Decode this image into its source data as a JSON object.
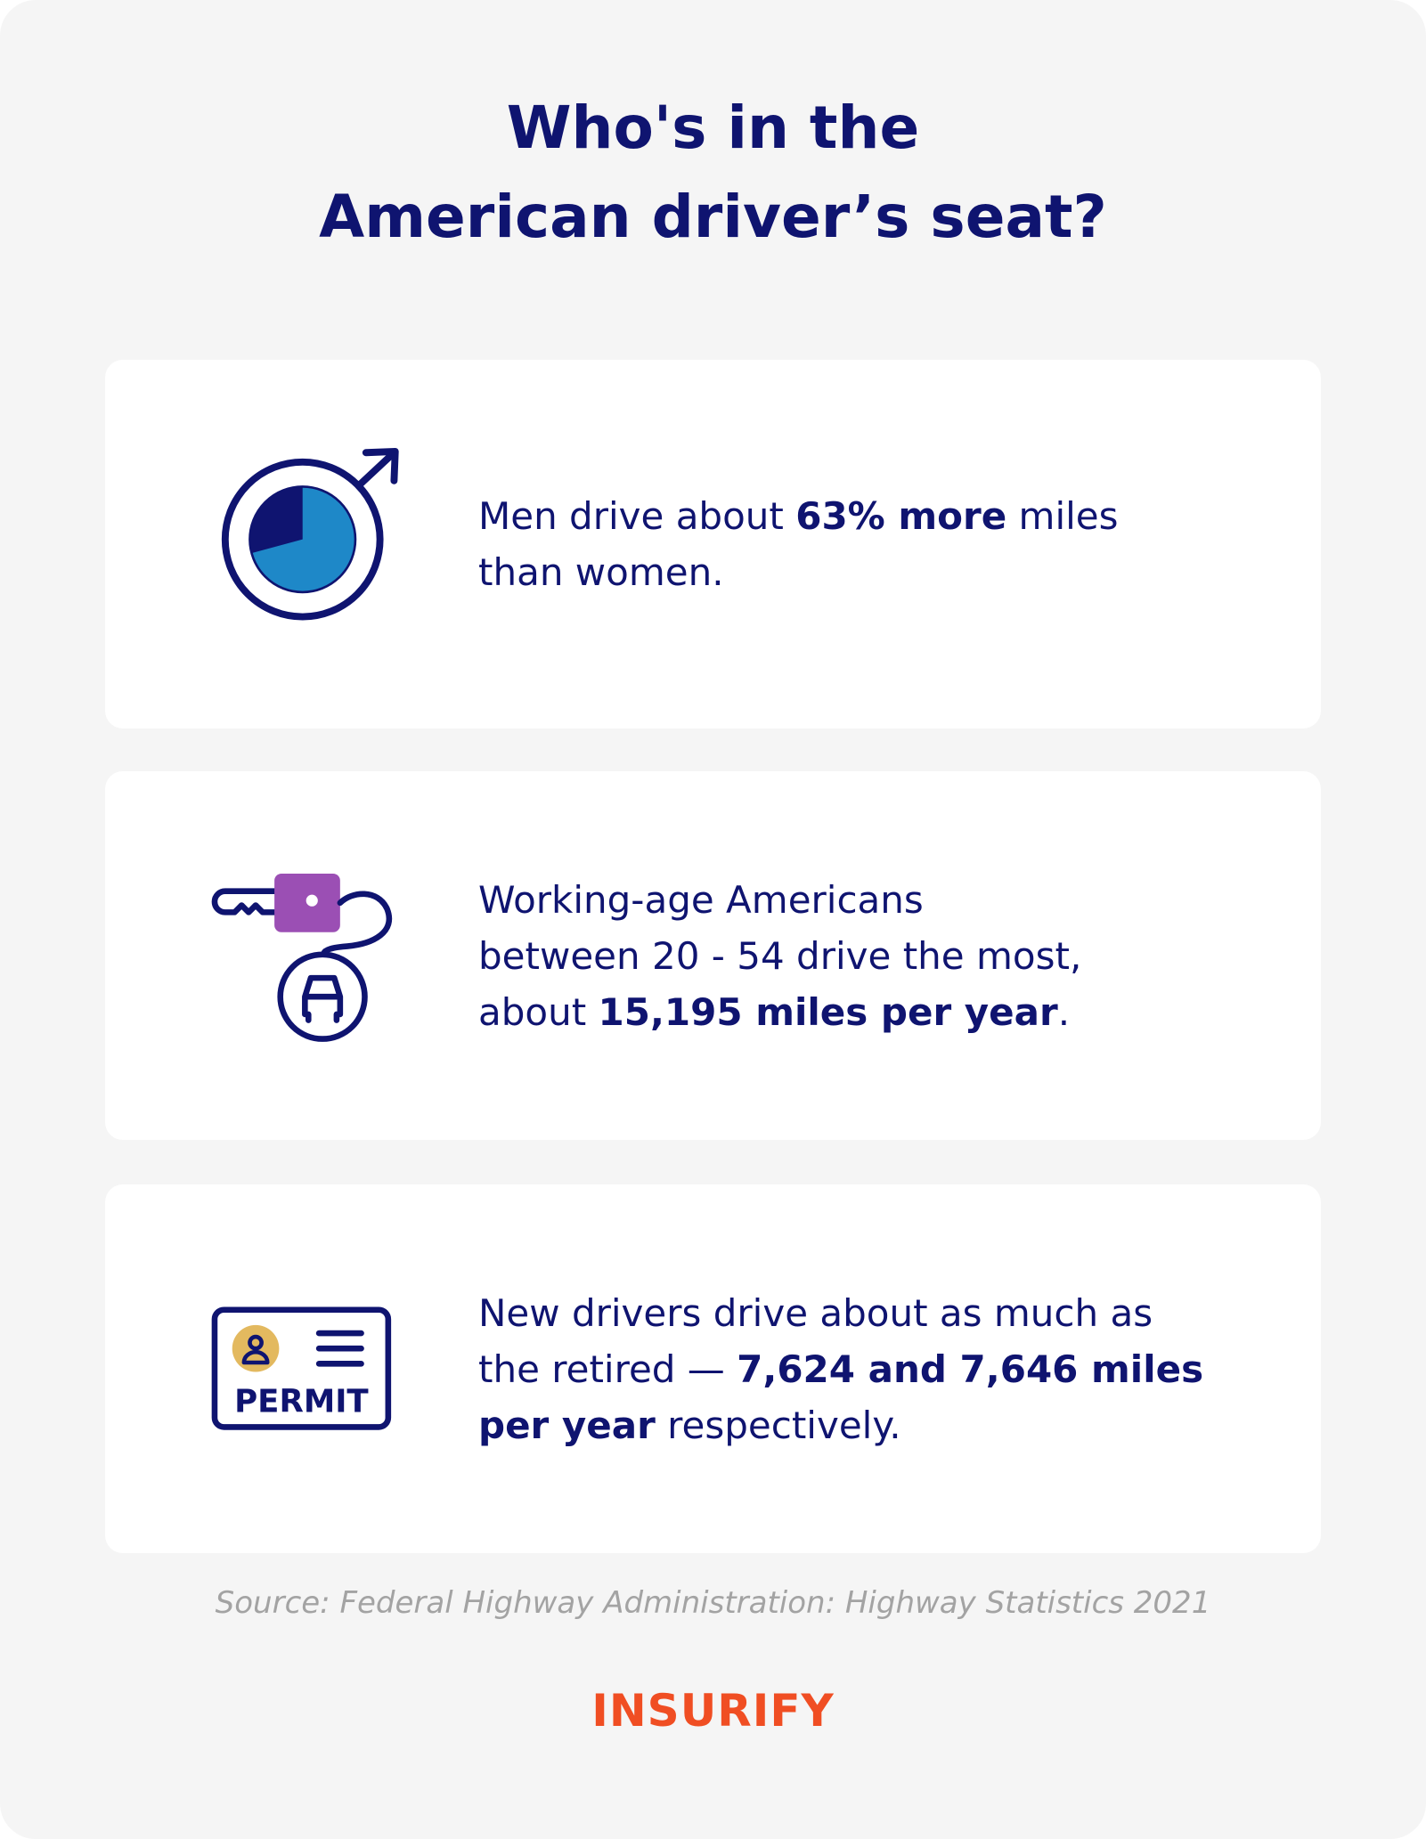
{
  "header": {
    "title_lines": [
      "Who's in the",
      "American driver’s seat?"
    ]
  },
  "cards": [
    {
      "lines": [
        [
          {
            "text": "Men drive about ",
            "bold": false
          },
          {
            "text": "63% more",
            "bold": true
          },
          {
            "text": " miles",
            "bold": false
          }
        ],
        [
          {
            "text": "than women.",
            "bold": false
          }
        ]
      ]
    },
    {
      "lines": [
        [
          {
            "text": "Working-age Americans",
            "bold": false
          }
        ],
        [
          {
            "text": "between 20 - 54 drive the most,",
            "bold": false
          }
        ],
        [
          {
            "text": "about ",
            "bold": false
          },
          {
            "text": "15,195 miles per year",
            "bold": true
          },
          {
            "text": ".",
            "bold": false
          }
        ]
      ]
    },
    {
      "icon_label": "PERMIT",
      "lines": [
        [
          {
            "text": "New drivers drive about as much as",
            "bold": false
          }
        ],
        [
          {
            "text": "the retired — ",
            "bold": false
          },
          {
            "text": "7,624 and 7,646 miles",
            "bold": true
          }
        ],
        [
          {
            "text": "per year",
            "bold": true
          },
          {
            "text": " respectively.",
            "bold": false
          }
        ]
      ]
    }
  ],
  "footer": {
    "source": "Source: Federal Highway Administration: Highway Statistics 2021",
    "logo": "INSURIFY"
  }
}
